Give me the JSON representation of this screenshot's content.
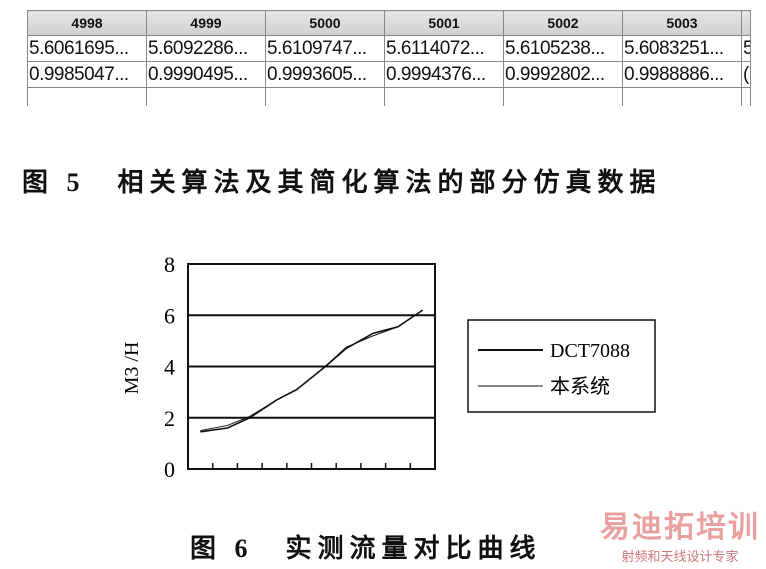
{
  "figure5": {
    "caption": "图 5　相关算法及其简化算法的部分仿真数据",
    "table": {
      "headers": [
        "4998",
        "4999",
        "5000",
        "5001",
        "5002",
        "5003",
        ""
      ],
      "rows": [
        [
          "5.6061695...",
          "5.6092286...",
          "5.6109747...",
          "5.6114072...",
          "5.6105238...",
          "5.6083251...",
          "5"
        ],
        [
          "0.9985047...",
          "0.9990495...",
          "0.9993605...",
          "0.9994376...",
          "0.9992802...",
          "0.9988886...",
          "("
        ]
      ]
    }
  },
  "figure6": {
    "caption": "图 6　实测流量对比曲线"
  },
  "chart_data": {
    "type": "line",
    "title": "",
    "xlabel": "",
    "ylabel": "M3 /H",
    "xlim": [
      0,
      10
    ],
    "ylim": [
      0,
      8
    ],
    "yticks": [
      "0",
      "2",
      "4",
      "6",
      "8"
    ],
    "x_tick_count": 9,
    "grid": "horizontal",
    "legend_placement": "right",
    "series": [
      {
        "name": "DCT7088",
        "x": [
          0.5,
          1.6,
          2.5,
          3.6,
          4.4,
          5.5,
          6.4,
          7.5,
          8.5,
          9.5
        ],
        "y": [
          1.45,
          1.6,
          2.0,
          2.7,
          3.1,
          3.95,
          4.7,
          5.3,
          5.55,
          6.2
        ]
      },
      {
        "name": "本系统",
        "x": [
          0.5,
          1.6,
          2.5,
          3.6,
          4.4,
          5.5,
          6.4,
          7.5,
          8.5,
          9.5
        ],
        "y": [
          1.5,
          1.7,
          2.05,
          2.7,
          3.1,
          3.95,
          4.75,
          5.2,
          5.55,
          6.2
        ]
      }
    ]
  },
  "watermark": {
    "line1": "易迪拓培训",
    "line2": "射频和天线设计专家"
  }
}
